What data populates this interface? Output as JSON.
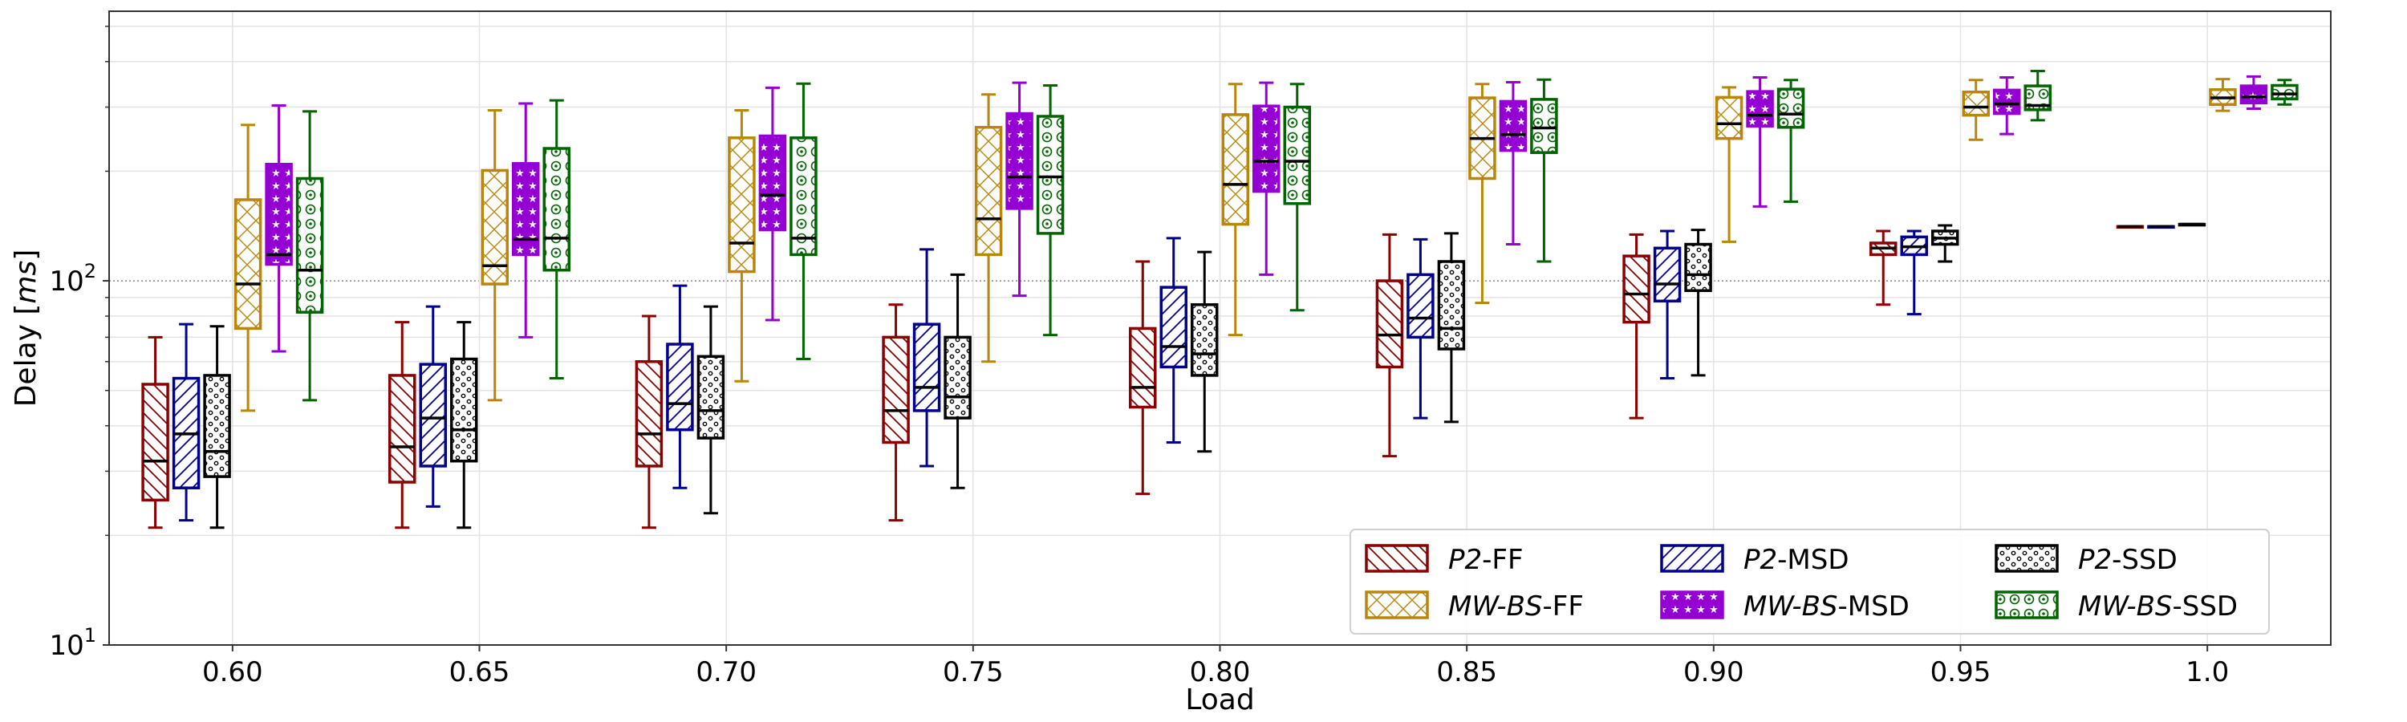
{
  "chart_data": {
    "type": "box",
    "xlabel": "Load",
    "ylabel_text": "Delay [",
    "ylabel_unit": "ms",
    "ylabel_close": "]",
    "yscale": "log",
    "ylim": [
      10,
      550
    ],
    "y_ticks": [
      {
        "value": 10,
        "base": "10",
        "exp": "1"
      },
      {
        "value": 100,
        "base": "10",
        "exp": "2"
      }
    ],
    "grid": true,
    "legend_position": "lower right",
    "categories": [
      "0.60",
      "0.65",
      "0.70",
      "0.75",
      "0.80",
      "0.85",
      "0.90",
      "0.95",
      "1.0"
    ],
    "series": [
      {
        "prefix": "P2",
        "suffix": "-FF",
        "color": "#8b0000",
        "hatch": "diag-back",
        "boxes": [
          {
            "whislo": 21,
            "q1": 25,
            "med": 32,
            "q3": 52,
            "whishi": 70
          },
          {
            "whislo": 21,
            "q1": 28,
            "med": 35,
            "q3": 55,
            "whishi": 77
          },
          {
            "whislo": 21,
            "q1": 31,
            "med": 38,
            "q3": 60,
            "whishi": 80
          },
          {
            "whislo": 22,
            "q1": 36,
            "med": 44,
            "q3": 70,
            "whishi": 86
          },
          {
            "whislo": 26,
            "q1": 45,
            "med": 51,
            "q3": 74,
            "whishi": 113
          },
          {
            "whislo": 33,
            "q1": 58,
            "med": 71,
            "q3": 100,
            "whishi": 134
          },
          {
            "whislo": 42,
            "q1": 77,
            "med": 92,
            "q3": 117,
            "whishi": 134
          },
          {
            "whislo": 86,
            "q1": 118,
            "med": 123,
            "q3": 127,
            "whishi": 137
          },
          {
            "whislo": 141,
            "q1": 141,
            "med": 141,
            "q3": 141,
            "whishi": 141
          }
        ]
      },
      {
        "prefix": "P2",
        "suffix": "-MSD",
        "color": "#00008b",
        "hatch": "diag-fwd",
        "boxes": [
          {
            "whislo": 22,
            "q1": 27,
            "med": 38,
            "q3": 54,
            "whishi": 76
          },
          {
            "whislo": 24,
            "q1": 31,
            "med": 42,
            "q3": 59,
            "whishi": 85
          },
          {
            "whislo": 27,
            "q1": 39,
            "med": 46,
            "q3": 67,
            "whishi": 97
          },
          {
            "whislo": 31,
            "q1": 44,
            "med": 51,
            "q3": 76,
            "whishi": 122
          },
          {
            "whislo": 36,
            "q1": 58,
            "med": 66,
            "q3": 96,
            "whishi": 131
          },
          {
            "whislo": 42,
            "q1": 70,
            "med": 79,
            "q3": 104,
            "whishi": 130
          },
          {
            "whislo": 54,
            "q1": 88,
            "med": 98,
            "q3": 123,
            "whishi": 137
          },
          {
            "whislo": 81,
            "q1": 118,
            "med": 124,
            "q3": 132,
            "whishi": 137
          },
          {
            "whislo": 141,
            "q1": 141,
            "med": 141,
            "q3": 141,
            "whishi": 141
          }
        ]
      },
      {
        "prefix": "P2",
        "suffix": "-SSD",
        "color": "#000000",
        "hatch": "small-circles",
        "boxes": [
          {
            "whislo": 21,
            "q1": 29,
            "med": 34,
            "q3": 55,
            "whishi": 75
          },
          {
            "whislo": 21,
            "q1": 32,
            "med": 39,
            "q3": 61,
            "whishi": 77
          },
          {
            "whislo": 23,
            "q1": 37,
            "med": 44,
            "q3": 62,
            "whishi": 85
          },
          {
            "whislo": 27,
            "q1": 42,
            "med": 48,
            "q3": 70,
            "whishi": 104
          },
          {
            "whislo": 34,
            "q1": 55,
            "med": 63,
            "q3": 86,
            "whishi": 120
          },
          {
            "whislo": 41,
            "q1": 65,
            "med": 74,
            "q3": 113,
            "whishi": 135
          },
          {
            "whislo": 55,
            "q1": 94,
            "med": 104,
            "q3": 126,
            "whishi": 138
          },
          {
            "whislo": 113,
            "q1": 126,
            "med": 131,
            "q3": 137,
            "whishi": 142
          },
          {
            "whislo": 143,
            "q1": 143,
            "med": 143,
            "q3": 143,
            "whishi": 143
          }
        ]
      },
      {
        "prefix": "MW-BS",
        "suffix": "-FF",
        "color": "#b8860b",
        "hatch": "cross",
        "boxes": [
          {
            "whislo": 44,
            "q1": 74,
            "med": 98,
            "q3": 167,
            "whishi": 268
          },
          {
            "whislo": 47,
            "q1": 98,
            "med": 110,
            "q3": 201,
            "whishi": 294
          },
          {
            "whislo": 53,
            "q1": 106,
            "med": 127,
            "q3": 247,
            "whishi": 294
          },
          {
            "whislo": 60,
            "q1": 118,
            "med": 148,
            "q3": 264,
            "whishi": 325
          },
          {
            "whislo": 71,
            "q1": 143,
            "med": 184,
            "q3": 286,
            "whishi": 347
          },
          {
            "whislo": 87,
            "q1": 191,
            "med": 246,
            "q3": 318,
            "whishi": 347
          },
          {
            "whislo": 128,
            "q1": 246,
            "med": 270,
            "q3": 319,
            "whishi": 340
          },
          {
            "whislo": 244,
            "q1": 285,
            "med": 300,
            "q3": 330,
            "whishi": 356
          },
          {
            "whislo": 293,
            "q1": 305,
            "med": 318,
            "q3": 335,
            "whishi": 358
          }
        ]
      },
      {
        "prefix": "MW-BS",
        "suffix": "-MSD",
        "color": "#9400d3",
        "hatch": "stars",
        "boxes": [
          {
            "whislo": 64,
            "q1": 111,
            "med": 118,
            "q3": 209,
            "whishi": 303
          },
          {
            "whislo": 70,
            "q1": 118,
            "med": 130,
            "q3": 210,
            "whishi": 307
          },
          {
            "whislo": 78,
            "q1": 138,
            "med": 172,
            "q3": 250,
            "whishi": 339
          },
          {
            "whislo": 91,
            "q1": 158,
            "med": 193,
            "q3": 288,
            "whishi": 350
          },
          {
            "whislo": 104,
            "q1": 176,
            "med": 213,
            "q3": 302,
            "whishi": 350
          },
          {
            "whislo": 126,
            "q1": 228,
            "med": 252,
            "q3": 311,
            "whishi": 351
          },
          {
            "whislo": 160,
            "q1": 266,
            "med": 285,
            "q3": 331,
            "whishi": 362
          },
          {
            "whislo": 253,
            "q1": 288,
            "med": 306,
            "q3": 334,
            "whishi": 362
          },
          {
            "whislo": 297,
            "q1": 308,
            "med": 320,
            "q3": 343,
            "whishi": 364
          }
        ]
      },
      {
        "prefix": "MW-BS",
        "suffix": "-SSD",
        "color": "#006400",
        "hatch": "rings",
        "boxes": [
          {
            "whislo": 47,
            "q1": 82,
            "med": 107,
            "q3": 191,
            "whishi": 292
          },
          {
            "whislo": 54,
            "q1": 107,
            "med": 131,
            "q3": 231,
            "whishi": 313
          },
          {
            "whislo": 61,
            "q1": 118,
            "med": 131,
            "q3": 247,
            "whishi": 348
          },
          {
            "whislo": 71,
            "q1": 135,
            "med": 193,
            "q3": 283,
            "whishi": 344
          },
          {
            "whislo": 83,
            "q1": 163,
            "med": 213,
            "q3": 300,
            "whishi": 347
          },
          {
            "whislo": 113,
            "q1": 225,
            "med": 263,
            "q3": 315,
            "whishi": 357
          },
          {
            "whislo": 165,
            "q1": 264,
            "med": 287,
            "q3": 336,
            "whishi": 356
          },
          {
            "whislo": 276,
            "q1": 295,
            "med": 303,
            "q3": 343,
            "whishi": 377
          },
          {
            "whislo": 305,
            "q1": 316,
            "med": 326,
            "q3": 344,
            "whishi": 356
          }
        ]
      }
    ]
  }
}
